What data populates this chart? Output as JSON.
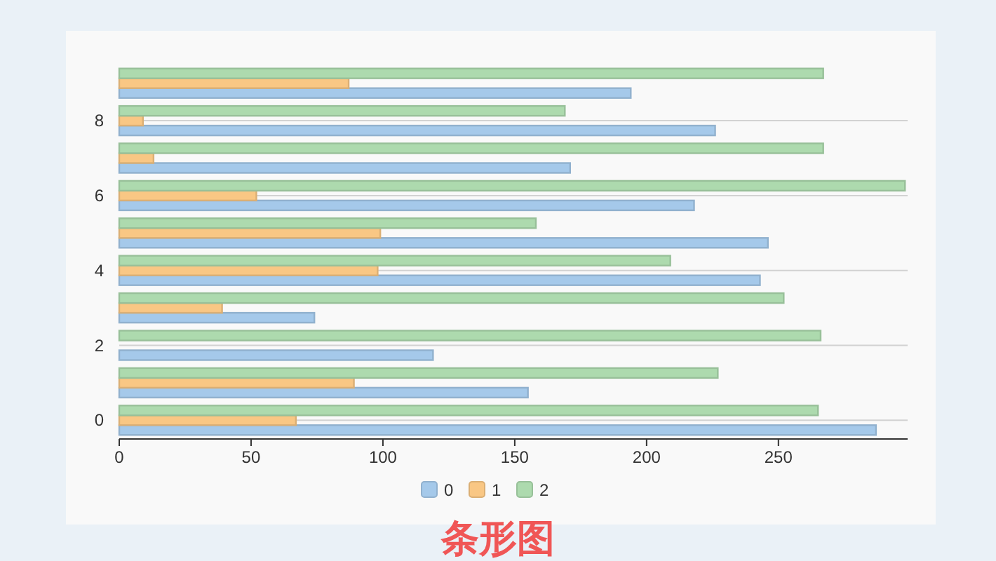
{
  "chart_data": {
    "type": "bar",
    "title": "条形图",
    "orientation": "horizontal",
    "categories": [
      null,
      "8",
      null,
      "6",
      null,
      "4",
      null,
      "2",
      null,
      "0"
    ],
    "series": [
      {
        "name": "0",
        "color": "#a5c9ea",
        "values": [
          194,
          226,
          171,
          218,
          246,
          243,
          74,
          119,
          155,
          287
        ]
      },
      {
        "name": "1",
        "color": "#f9c784",
        "values": [
          87,
          9,
          13,
          52,
          99,
          98,
          39,
          null,
          89,
          67
        ]
      },
      {
        "name": "2",
        "color": "#addaae",
        "values": [
          267,
          169,
          267,
          298,
          158,
          209,
          252,
          266,
          227,
          265
        ]
      }
    ],
    "xlim": [
      0,
      299
    ],
    "xticks": [
      0,
      50,
      100,
      150,
      200,
      250
    ],
    "grid": "y",
    "legend": "bottom"
  }
}
